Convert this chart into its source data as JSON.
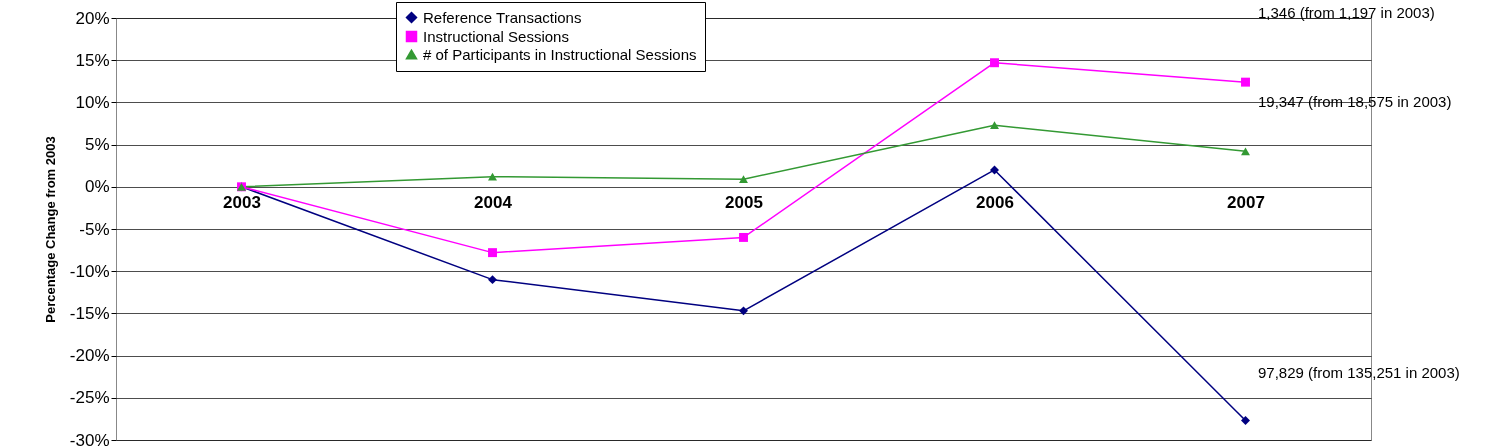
{
  "chart_data": {
    "type": "line",
    "ylabel": "Percentage Change from 2003",
    "categories": [
      "2003",
      "2004",
      "2005",
      "2006",
      "2007"
    ],
    "series": [
      {
        "name": "Reference Transactions",
        "color": "#000080",
        "marker": "diamond",
        "values": [
          0,
          -11.0,
          -14.7,
          2.0,
          -27.7
        ]
      },
      {
        "name": "Instructional Sessions",
        "color": "#ff00ff",
        "marker": "square",
        "values": [
          0,
          -7.8,
          -6.0,
          14.7,
          12.4
        ]
      },
      {
        "name": "# of Participants in Instructional Sessions",
        "color": "#339933",
        "marker": "triangle",
        "values": [
          0,
          1.2,
          0.9,
          7.3,
          4.2
        ]
      }
    ],
    "ylim": [
      -30,
      20
    ],
    "yticks": [
      {
        "value": -30,
        "label": "-30%"
      },
      {
        "value": -25,
        "label": "-25%"
      },
      {
        "value": -20,
        "label": "-20%"
      },
      {
        "value": -15,
        "label": "-15%"
      },
      {
        "value": -10,
        "label": "-10%"
      },
      {
        "value": -5,
        "label": "-5%"
      },
      {
        "value": 0,
        "label": "0%"
      },
      {
        "value": 5,
        "label": "5%"
      },
      {
        "value": 10,
        "label": "10%"
      },
      {
        "value": 15,
        "label": "15%"
      },
      {
        "value": 20,
        "label": "20%"
      }
    ],
    "grid": "y",
    "legend": "top",
    "annotations": [
      "1,346 (from 1,197 in 2003)",
      "19,347 (from 18,575 in 2003)",
      "97,829 (from 135,251 in 2003)"
    ]
  }
}
